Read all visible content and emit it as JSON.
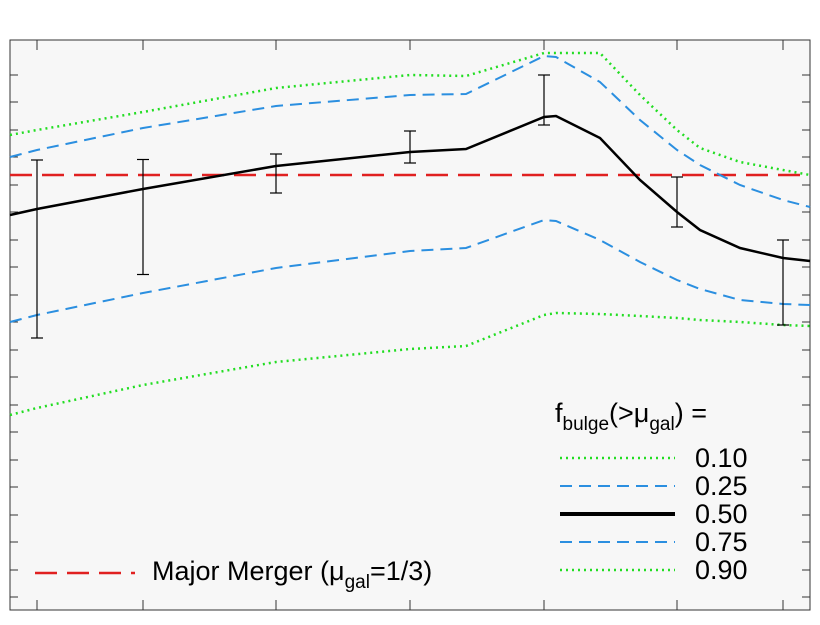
{
  "chart_data": {
    "type": "line",
    "x": [
      0,
      0.27,
      1.33,
      2.66,
      4.0,
      4.56,
      5.34,
      5.46,
      5.9,
      6.3,
      6.67,
      6.9,
      7.3,
      7.73,
      8.0
    ],
    "series": [
      {
        "name": "0.10",
        "color": "#22dd22",
        "dash": "dotted",
        "values": [
          4.75,
          4.8,
          4.98,
          5.22,
          5.35,
          5.34,
          5.57,
          5.57,
          5.57,
          5.15,
          4.8,
          4.62,
          4.48,
          4.4,
          4.35
        ]
      },
      {
        "name": "0.25",
        "color": "#2b8fe0",
        "dash": "dashed",
        "values": [
          4.53,
          4.6,
          4.82,
          5.04,
          5.15,
          5.16,
          5.54,
          5.53,
          5.28,
          4.9,
          4.6,
          4.45,
          4.25,
          4.1,
          4.03
        ]
      },
      {
        "name": "0.50",
        "color": "#000000",
        "dash": "solid",
        "values": [
          3.95,
          4.01,
          4.21,
          4.44,
          4.58,
          4.61,
          4.93,
          4.94,
          4.72,
          4.3,
          3.98,
          3.8,
          3.62,
          3.52,
          3.49
        ]
      },
      {
        "name": "0.75",
        "color": "#2b8fe0",
        "dash": "dashed",
        "values": [
          2.88,
          2.95,
          3.17,
          3.42,
          3.59,
          3.62,
          3.9,
          3.89,
          3.7,
          3.48,
          3.3,
          3.21,
          3.1,
          3.06,
          3.05
        ]
      },
      {
        "name": "0.90",
        "color": "#22dd22",
        "dash": "dotted",
        "values": [
          1.95,
          2.02,
          2.25,
          2.48,
          2.61,
          2.64,
          2.95,
          2.97,
          2.96,
          2.94,
          2.92,
          2.9,
          2.88,
          2.85,
          2.84
        ]
      }
    ],
    "errorbars": {
      "x": [
        0.27,
        1.33,
        2.66,
        4.0,
        5.34,
        6.67,
        7.73
      ],
      "values": [
        3.61,
        3.93,
        4.365,
        4.63,
        5.1,
        4.08,
        3.275
      ],
      "errors": [
        0.89,
        0.575,
        0.195,
        0.16,
        0.25,
        0.25,
        0.425
      ],
      "color": "#000000"
    },
    "legend_title": [
      "f",
      "bulge",
      "(>μ",
      "gal",
      ") ="
    ],
    "reference_line": {
      "label": [
        "Major Merger (μ",
        "gal",
        "=1/3)"
      ],
      "value": 4.35,
      "color": "#e02020"
    },
    "xlim": [
      0,
      8
    ],
    "ylim": [
      0,
      5.7
    ],
    "xticks": [
      0.27,
      1.33,
      2.66,
      4.0,
      5.34,
      6.67,
      7.73
    ],
    "yticks": [
      0.13,
      0.4,
      0.68,
      0.95,
      1.23,
      1.5,
      1.78,
      2.05,
      2.33,
      2.6,
      2.88,
      3.15,
      3.43,
      3.7,
      3.98,
      4.25,
      4.53,
      4.8,
      5.08,
      5.35
    ]
  }
}
